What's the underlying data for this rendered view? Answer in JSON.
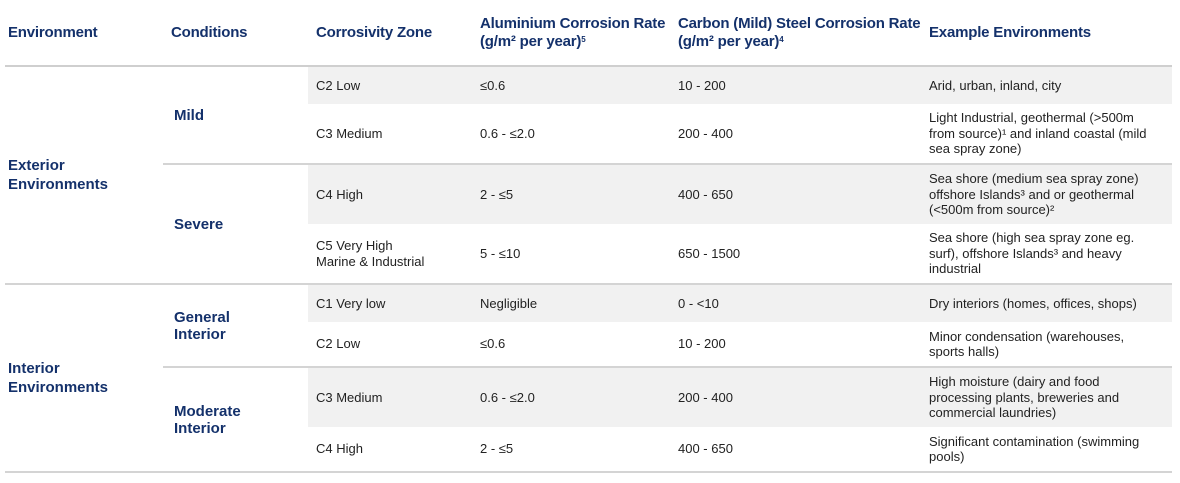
{
  "headers": {
    "environment": "Environment",
    "conditions": "Conditions",
    "zone": "Corrosivity Zone",
    "aluminium": "Aluminium Corrosion Rate (g/m² per year)",
    "aluminium_note": "5",
    "steel": "Carbon (Mild) Steel Corrosion Rate (g/m² per year)",
    "steel_note": "4",
    "examples": "Example Environments"
  },
  "groups": [
    {
      "environment": "Exterior Environments",
      "conditions": [
        {
          "label": "Mild",
          "rows": [
            {
              "zone": "C2 Low",
              "aluminium": "≤0.6",
              "steel": "10 - 200",
              "examples": "Arid, urban, inland, city"
            },
            {
              "zone": "C3 Medium",
              "aluminium": "0.6 - ≤2.0",
              "steel": "200 - 400",
              "examples": "Light Industrial, geothermal (>500m from source)¹ and inland coastal (mild sea spray zone)"
            }
          ]
        },
        {
          "label": "Severe",
          "rows": [
            {
              "zone": "C4 High",
              "aluminium": "2 - ≤5",
              "steel": "400 - 650",
              "examples": "Sea shore (medium sea spray zone) offshore Islands³ and or geothermal (<500m from source)²"
            },
            {
              "zone": "C5 Very High Marine & Industrial",
              "aluminium": "5 - ≤10",
              "steel": "650 - 1500",
              "examples": "Sea shore (high sea spray zone eg. surf), offshore Islands³ and heavy industrial"
            }
          ]
        }
      ]
    },
    {
      "environment": "Interior Environments",
      "conditions": [
        {
          "label": "General Interior",
          "rows": [
            {
              "zone": "C1 Very low",
              "aluminium": "Negligible",
              "steel": "0 - <10",
              "examples": "Dry interiors (homes, offices, shops)"
            },
            {
              "zone": "C2 Low",
              "aluminium": "≤0.6",
              "steel": "10 - 200",
              "examples": "Minor condensation (warehouses, sports halls)"
            }
          ]
        },
        {
          "label": "Moderate Interior",
          "rows": [
            {
              "zone": "C3 Medium",
              "aluminium": "0.6 - ≤2.0",
              "steel": "200 - 400",
              "examples": "High moisture (dairy and food processing plants, breweries and commercial laundries)"
            },
            {
              "zone": "C4 High",
              "aluminium": "2 - ≤5",
              "steel": "400 - 650",
              "examples": "Significant contamination (swimming pools)"
            }
          ]
        }
      ]
    }
  ],
  "colors": {
    "header_text": "#14316b",
    "stripe": "#f1f1f1",
    "rule": "#d4d4d4"
  }
}
